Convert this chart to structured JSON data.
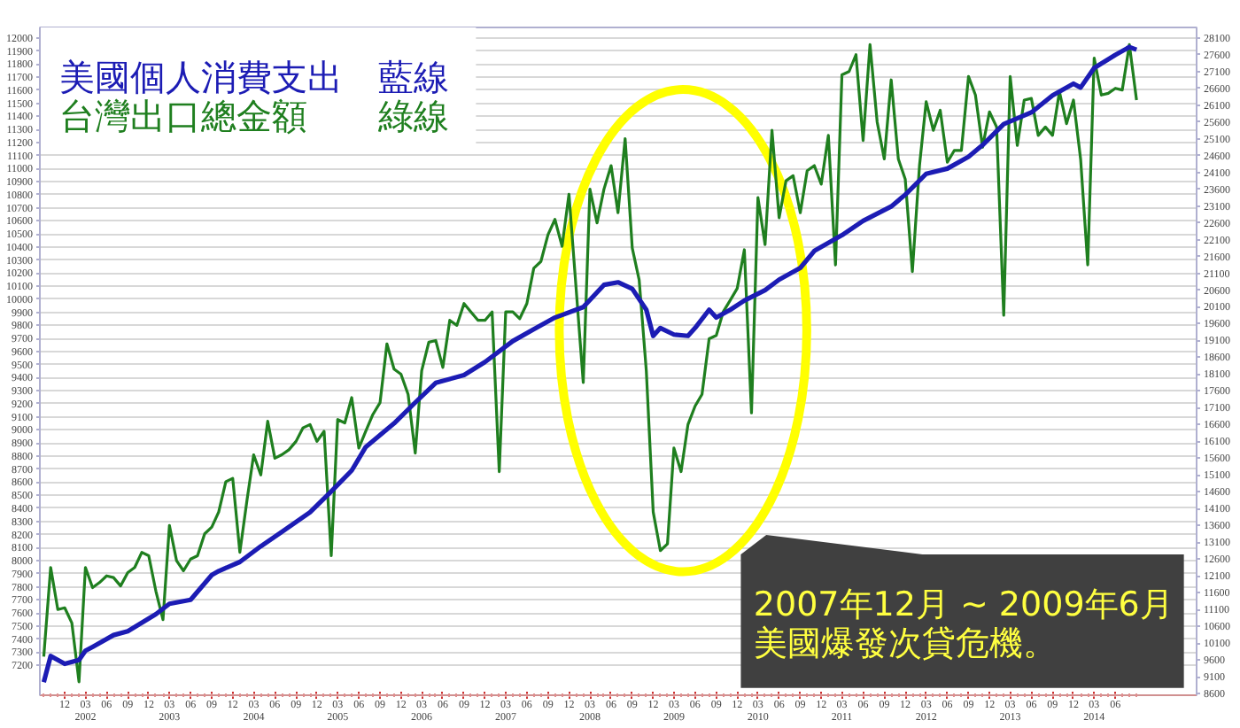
{
  "chart_data": {
    "type": "line",
    "x": [
      "2001-09",
      "2001-10",
      "2001-11",
      "2001-12",
      "2002-01",
      "2002-02",
      "2002-03",
      "2002-04",
      "2002-05",
      "2002-06",
      "2002-07",
      "2002-08",
      "2002-09",
      "2002-10",
      "2002-11",
      "2002-12",
      "2003-01",
      "2003-02",
      "2003-03",
      "2003-04",
      "2003-05",
      "2003-06",
      "2003-07",
      "2003-08",
      "2003-09",
      "2003-10",
      "2003-11",
      "2003-12",
      "2004-01",
      "2004-02",
      "2004-03",
      "2004-04",
      "2004-05",
      "2004-06",
      "2004-07",
      "2004-08",
      "2004-09",
      "2004-10",
      "2004-11",
      "2004-12",
      "2005-01",
      "2005-02",
      "2005-03",
      "2005-04",
      "2005-05",
      "2005-06",
      "2005-07",
      "2005-08",
      "2005-09",
      "2005-10",
      "2005-11",
      "2005-12",
      "2006-01",
      "2006-02",
      "2006-03",
      "2006-04",
      "2006-05",
      "2006-06",
      "2006-07",
      "2006-08",
      "2006-09",
      "2006-10",
      "2006-11",
      "2006-12",
      "2007-01",
      "2007-02",
      "2007-03",
      "2007-04",
      "2007-05",
      "2007-06",
      "2007-07",
      "2007-08",
      "2007-09",
      "2007-10",
      "2007-11",
      "2007-12",
      "2008-01",
      "2008-02",
      "2008-03",
      "2008-04",
      "2008-05",
      "2008-06",
      "2008-07",
      "2008-08",
      "2008-09",
      "2008-10",
      "2008-11",
      "2008-12",
      "2009-01",
      "2009-02",
      "2009-03",
      "2009-04",
      "2009-05",
      "2009-06",
      "2009-07",
      "2009-08",
      "2009-09",
      "2009-10",
      "2009-11",
      "2009-12",
      "2010-01",
      "2010-02",
      "2010-03",
      "2010-04",
      "2010-05",
      "2010-06",
      "2010-07",
      "2010-08",
      "2010-09",
      "2010-10",
      "2010-11",
      "2010-12",
      "2011-01",
      "2011-02",
      "2011-03",
      "2011-04",
      "2011-05",
      "2011-06",
      "2011-07",
      "2011-08",
      "2011-09",
      "2011-10",
      "2011-11",
      "2011-12",
      "2012-01",
      "2012-02",
      "2012-03",
      "2012-04",
      "2012-05",
      "2012-06",
      "2012-07",
      "2012-08",
      "2012-09",
      "2012-10",
      "2012-11",
      "2012-12",
      "2013-01",
      "2013-02",
      "2013-03",
      "2013-04",
      "2013-05",
      "2013-06",
      "2013-07",
      "2013-08",
      "2013-09",
      "2013-10",
      "2013-11",
      "2013-12",
      "2014-01",
      "2014-02",
      "2014-03",
      "2014-04",
      "2014-05",
      "2014-06",
      "2014-07",
      "2014-08",
      "2014-09"
    ],
    "series": [
      {
        "name": "美國個人消費支出　藍線",
        "color": "#1c1cb4",
        "x": [
          "2001-09",
          "2001-10",
          "2001-12",
          "2002-02",
          "2002-03",
          "2002-04",
          "2002-07",
          "2002-09",
          "2003-01",
          "2003-03",
          "2003-06",
          "2003-09",
          "2003-10",
          "2004-01",
          "2004-04",
          "2004-07",
          "2004-11",
          "2005-02",
          "2005-05",
          "2005-07",
          "2005-11",
          "2006-02",
          "2006-05",
          "2006-09",
          "2006-12",
          "2007-04",
          "2007-07",
          "2007-10",
          "2008-02",
          "2008-05",
          "2008-07",
          "2008-09",
          "2008-11",
          "2008-12",
          "2009-01",
          "2009-03",
          "2009-05",
          "2009-06",
          "2009-08",
          "2009-09",
          "2009-11",
          "2010-01",
          "2010-04",
          "2010-06",
          "2010-09",
          "2010-11",
          "2011-03",
          "2011-06",
          "2011-10",
          "2011-12",
          "2012-03",
          "2012-06",
          "2012-09",
          "2012-11",
          "2013-02",
          "2013-06",
          "2013-09",
          "2013-12",
          "2014-01",
          "2014-03",
          "2014-06",
          "2014-08",
          "2014-09"
        ],
        "values": [
          7070,
          7270,
          7210,
          7240,
          7310,
          7340,
          7430,
          7460,
          7590,
          7670,
          7700,
          7890,
          7920,
          7990,
          8110,
          8220,
          8370,
          8530,
          8690,
          8870,
          9050,
          9210,
          9360,
          9420,
          9520,
          9680,
          9770,
          9860,
          9940,
          10110,
          10130,
          10080,
          9920,
          9720,
          9780,
          9730,
          9720,
          9780,
          9920,
          9860,
          9920,
          9990,
          10070,
          10150,
          10240,
          10370,
          10490,
          10600,
          10710,
          10800,
          10960,
          11000,
          11090,
          11180,
          11340,
          11430,
          11560,
          11650,
          11620,
          11770,
          11870,
          11930,
          11910
        ]
      },
      {
        "name": "台灣出口總金額　　綠線",
        "color": "#1f7f1f",
        "axis": "y2",
        "values": [
          9700,
          12350,
          11100,
          11150,
          10700,
          8950,
          12350,
          11750,
          11900,
          12100,
          12050,
          11800,
          12200,
          12350,
          12800,
          12700,
          11650,
          10800,
          13600,
          12550,
          12250,
          12600,
          12700,
          13350,
          13550,
          14000,
          14900,
          15000,
          12800,
          14350,
          15700,
          15100,
          16700,
          15600,
          15700,
          15850,
          16100,
          16500,
          16600,
          16100,
          16400,
          12700,
          16750,
          16650,
          17400,
          15900,
          16400,
          16900,
          17250,
          19000,
          18250,
          18100,
          17500,
          15750,
          18200,
          19050,
          19100,
          18300,
          19700,
          19550,
          20200,
          19950,
          19700,
          19700,
          19950,
          15200,
          19950,
          19950,
          19750,
          20200,
          21250,
          21450,
          22250,
          22700,
          21900,
          23450,
          20650,
          17850,
          23600,
          22600,
          23600,
          24300,
          22900,
          25100,
          21850,
          20900,
          18200,
          14000,
          12850,
          13050,
          15900,
          15200,
          16600,
          17150,
          17500,
          19150,
          19250,
          19950,
          20300,
          20650,
          21800,
          16950,
          23350,
          21950,
          25350,
          22750,
          23850,
          24000,
          22900,
          24150,
          24300,
          23750,
          25200,
          21350,
          27000,
          27100,
          27600,
          25050,
          27900,
          25600,
          24500,
          26850,
          24500,
          23900,
          21150,
          24300,
          26200,
          25350,
          25950,
          24400,
          24750,
          24750,
          26950,
          26400,
          24850,
          25900,
          25450,
          19850,
          26950,
          24900,
          26250,
          26300,
          25200,
          25450,
          25200,
          26500,
          25550,
          26250,
          24500,
          21350,
          27500,
          26400,
          26450,
          26600,
          26550,
          27900,
          26250
        ]
      }
    ],
    "xlim": [
      "2001-08-15",
      "2015-05-20"
    ],
    "xticks": [
      {
        "value": "2001-12",
        "label": "12"
      },
      {
        "value": "2002-03",
        "label": "03\n2002"
      },
      {
        "value": "2002-06",
        "label": "06"
      },
      {
        "value": "2002-09",
        "label": "09"
      },
      {
        "value": "2002-12",
        "label": "12"
      },
      {
        "value": "2003-03",
        "label": "03\n2003"
      },
      {
        "value": "2003-06",
        "label": "06"
      },
      {
        "value": "2003-09",
        "label": "09"
      },
      {
        "value": "2003-12",
        "label": "12"
      },
      {
        "value": "2004-03",
        "label": "03\n2004"
      },
      {
        "value": "2004-06",
        "label": "06"
      },
      {
        "value": "2004-09",
        "label": "09"
      },
      {
        "value": "2004-12",
        "label": "12"
      },
      {
        "value": "2005-03",
        "label": "03\n2005"
      },
      {
        "value": "2005-06",
        "label": "06"
      },
      {
        "value": "2005-09",
        "label": "09"
      },
      {
        "value": "2005-12",
        "label": "12"
      },
      {
        "value": "2006-03",
        "label": "03\n2006"
      },
      {
        "value": "2006-06",
        "label": "06"
      },
      {
        "value": "2006-09",
        "label": "09"
      },
      {
        "value": "2006-12",
        "label": "12"
      },
      {
        "value": "2007-03",
        "label": "03\n2007"
      },
      {
        "value": "2007-06",
        "label": "06"
      },
      {
        "value": "2007-09",
        "label": "09"
      },
      {
        "value": "2007-12",
        "label": "12"
      },
      {
        "value": "2008-03",
        "label": "03\n2008"
      },
      {
        "value": "2008-06",
        "label": "06"
      },
      {
        "value": "2008-09",
        "label": "09"
      },
      {
        "value": "2008-12",
        "label": "12"
      },
      {
        "value": "2009-03",
        "label": "03\n2009"
      },
      {
        "value": "2009-06",
        "label": "06"
      },
      {
        "value": "2009-09",
        "label": "09"
      },
      {
        "value": "2009-12",
        "label": "12"
      },
      {
        "value": "2010-03",
        "label": "03\n2010"
      },
      {
        "value": "2010-06",
        "label": "06"
      },
      {
        "value": "2010-09",
        "label": "09"
      },
      {
        "value": "2010-12",
        "label": "12"
      },
      {
        "value": "2011-03",
        "label": "03\n2011"
      },
      {
        "value": "2011-06",
        "label": "06"
      },
      {
        "value": "2011-09",
        "label": "09"
      },
      {
        "value": "2011-12",
        "label": "12"
      },
      {
        "value": "2012-03",
        "label": "03\n2012"
      },
      {
        "value": "2012-06",
        "label": "06"
      },
      {
        "value": "2012-09",
        "label": "09"
      },
      {
        "value": "2012-12",
        "label": "12"
      },
      {
        "value": "2013-03",
        "label": "03\n2013"
      },
      {
        "value": "2013-06",
        "label": "06"
      },
      {
        "value": "2013-09",
        "label": "09"
      },
      {
        "value": "2013-12",
        "label": "12"
      },
      {
        "value": "2014-03",
        "label": "03\n2014"
      },
      {
        "value": "2014-06",
        "label": "06"
      }
    ],
    "ylim": [
      6970,
      12080
    ],
    "yticks": [
      7200,
      7300,
      7400,
      7500,
      7600,
      7700,
      7800,
      7900,
      8000,
      8100,
      8200,
      8300,
      8400,
      8500,
      8600,
      8700,
      8800,
      8900,
      9000,
      9100,
      9200,
      9300,
      9400,
      9500,
      9600,
      9700,
      9800,
      9900,
      10000,
      10100,
      10200,
      10300,
      10400,
      10500,
      10600,
      10700,
      10800,
      10900,
      11000,
      11100,
      11200,
      11300,
      11400,
      11500,
      11600,
      11700,
      11800,
      11900,
      12000
    ],
    "y2lim": [
      8550,
      28410
    ],
    "y2ticks": [
      8600,
      9100,
      9600,
      10100,
      10600,
      11100,
      11600,
      12100,
      12600,
      13100,
      13600,
      14100,
      14600,
      15100,
      15600,
      16100,
      16600,
      17100,
      17600,
      18100,
      18600,
      19100,
      19600,
      20100,
      20600,
      21100,
      21600,
      22100,
      22600,
      23100,
      23600,
      24100,
      24600,
      25100,
      25600,
      26100,
      26600,
      27100,
      27600,
      28100
    ],
    "grid": "y",
    "legend": "top left",
    "annotations": [
      "2007年12月 ~ 2009年6月",
      "美國爆發次貸危機。"
    ]
  }
}
